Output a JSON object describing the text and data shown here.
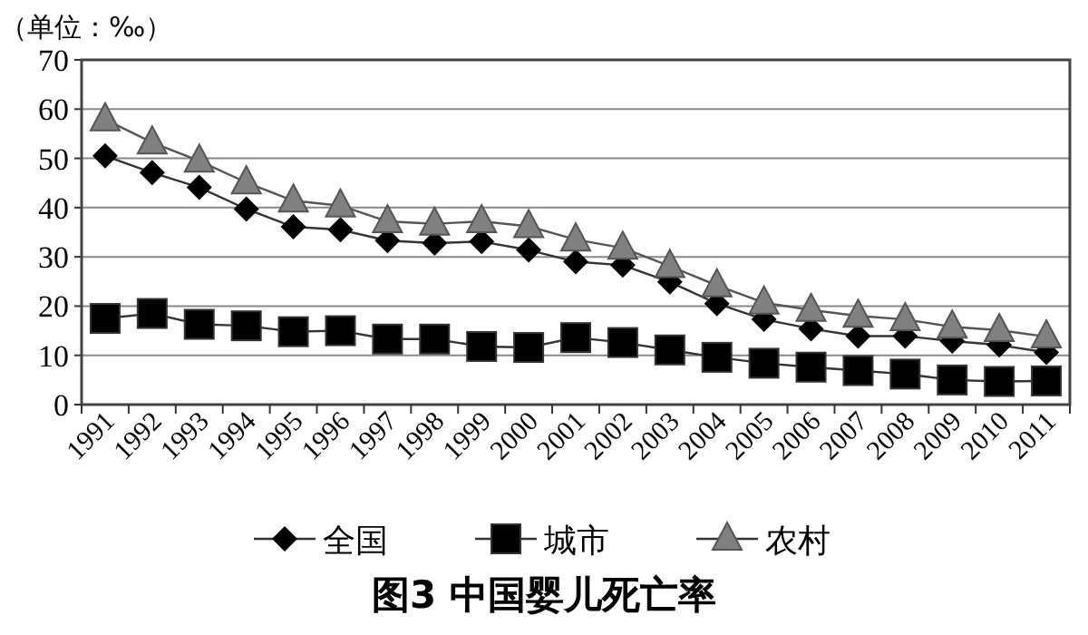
{
  "chart_data": {
    "type": "line",
    "title": "图3 中国婴儿死亡率",
    "ylabel": "（单位：‰）",
    "categories": [
      "1991",
      "1992",
      "1993",
      "1994",
      "1995",
      "1996",
      "1997",
      "1998",
      "1999",
      "2000",
      "2001",
      "2002",
      "2003",
      "2004",
      "2005",
      "2006",
      "2007",
      "2008",
      "2009",
      "2010",
      "2011"
    ],
    "series": [
      {
        "name": "全国",
        "color": "#000000",
        "marker": "diamond",
        "values": [
          50.5,
          47.1,
          44.1,
          39.7,
          36.1,
          35.5,
          33.3,
          32.8,
          33.1,
          31.4,
          29.0,
          28.3,
          24.9,
          20.5,
          17.3,
          15.4,
          13.9,
          13.9,
          12.9,
          12.1,
          10.6
        ]
      },
      {
        "name": "城市",
        "color": "#000000",
        "marker": "square",
        "values": [
          17.5,
          18.5,
          16.3,
          16.0,
          14.8,
          15.0,
          13.3,
          13.3,
          11.8,
          11.6,
          13.6,
          12.6,
          11.1,
          9.6,
          8.4,
          7.6,
          6.9,
          6.2,
          5.0,
          4.7,
          4.8
        ]
      },
      {
        "name": "农村",
        "color": "#808080",
        "marker": "triangle",
        "values": [
          57.9,
          53.2,
          49.5,
          45.1,
          41.4,
          40.4,
          37.2,
          36.7,
          37.2,
          36.2,
          33.5,
          31.8,
          28.1,
          24.2,
          20.7,
          19.2,
          18.0,
          17.3,
          15.8,
          15.1,
          13.8
        ]
      }
    ],
    "ylim": [
      0,
      70
    ],
    "yticks": [
      0,
      10,
      20,
      30,
      40,
      50,
      60,
      70
    ],
    "grid": "y",
    "legend": "bottom",
    "line_style": "solid"
  }
}
